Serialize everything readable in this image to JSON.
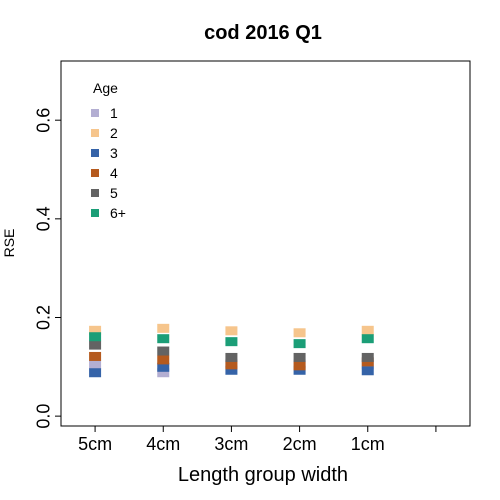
{
  "chart_data": {
    "type": "scatter",
    "title": "cod 2016 Q1",
    "xlabel": "Length group width",
    "ylabel": "RSE",
    "categories": [
      "5cm",
      "4cm",
      "3cm",
      "2cm",
      "1cm"
    ],
    "xlim": [
      0.5,
      6.5
    ],
    "ylim": [
      -0.02,
      0.72
    ],
    "yticks": [
      0.0,
      0.2,
      0.4,
      0.6
    ],
    "ytick_labels": [
      "0.0",
      "0.2",
      "0.4",
      "0.6"
    ],
    "grid": false,
    "legend": {
      "title": "Age",
      "position": "top-left"
    },
    "series": [
      {
        "name": "1",
        "color": "#b3aed2",
        "values": [
          0.104,
          0.088,
          0.107,
          0.106,
          0.104
        ]
      },
      {
        "name": "2",
        "color": "#f6c58c",
        "values": [
          0.174,
          0.178,
          0.173,
          0.169,
          0.174
        ]
      },
      {
        "name": "3",
        "color": "#3563a8",
        "values": [
          0.088,
          0.099,
          0.093,
          0.093,
          0.092
        ]
      },
      {
        "name": "4",
        "color": "#b55a1e",
        "values": [
          0.121,
          0.114,
          0.104,
          0.102,
          0.11
        ]
      },
      {
        "name": "5",
        "color": "#636363",
        "values": [
          0.144,
          0.132,
          0.119,
          0.119,
          0.119
        ]
      },
      {
        "name": "6+",
        "color": "#1b9e77",
        "values": [
          0.161,
          0.157,
          0.151,
          0.147,
          0.157
        ]
      }
    ]
  }
}
